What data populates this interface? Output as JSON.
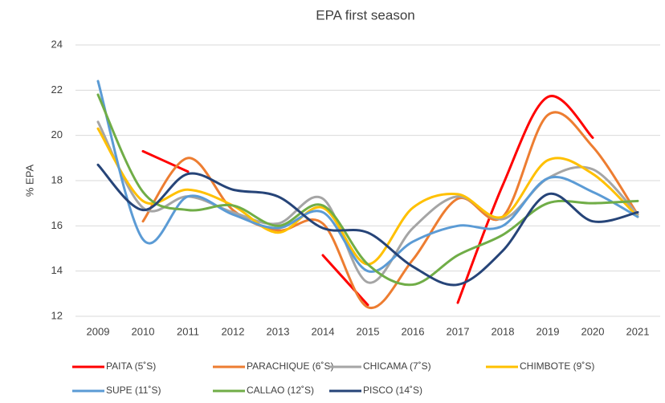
{
  "chart_data": {
    "type": "line",
    "title": "EPA first season",
    "y_label": "% EPA",
    "categories": [
      "2009",
      "2010",
      "2011",
      "2012",
      "2013",
      "2014",
      "2015",
      "2016",
      "2017",
      "2018",
      "2019",
      "2020",
      "2021"
    ],
    "ylim": [
      12,
      24
    ],
    "yticks": [
      12,
      14,
      16,
      18,
      20,
      22,
      24
    ],
    "grid": true,
    "smooth": true,
    "legend": "bottom",
    "series": [
      {
        "name": "PAITA (5˚S)",
        "color": "#ff0000",
        "values": [
          null,
          19.3,
          18.4,
          null,
          null,
          14.7,
          12.5,
          null,
          12.6,
          17.8,
          21.7,
          19.9,
          null
        ]
      },
      {
        "name": "PARACHIQUE (6˚S)",
        "color": "#ed7d31",
        "values": [
          null,
          16.2,
          19.0,
          16.7,
          15.8,
          16.1,
          12.4,
          14.5,
          17.2,
          16.4,
          20.9,
          19.5,
          16.5
        ]
      },
      {
        "name": "CHICAMA (7˚S)",
        "color": "#a5a5a5",
        "values": [
          20.6,
          16.8,
          17.3,
          16.6,
          16.1,
          17.2,
          13.5,
          15.9,
          17.3,
          16.3,
          18.1,
          18.5,
          16.5
        ]
      },
      {
        "name": "CHIMBOTE (9˚S)",
        "color": "#ffc000",
        "values": [
          20.3,
          17.1,
          17.6,
          16.9,
          15.7,
          16.8,
          14.3,
          16.8,
          17.4,
          16.4,
          18.9,
          18.3,
          16.4
        ]
      },
      {
        "name": "SUPE (11˚S)",
        "color": "#5b9bd5",
        "values": [
          22.4,
          15.4,
          17.3,
          16.5,
          15.9,
          16.6,
          14.0,
          15.3,
          16.0,
          16.0,
          18.1,
          17.5,
          16.4
        ]
      },
      {
        "name": "CALLAO (12˚S)",
        "color": "#70ad47",
        "values": [
          21.8,
          17.5,
          16.7,
          16.9,
          16.0,
          16.9,
          14.3,
          13.4,
          14.7,
          15.6,
          17.0,
          17.0,
          17.1
        ]
      },
      {
        "name": "PISCO (14˚S)",
        "color": "#264478",
        "values": [
          18.7,
          16.7,
          18.3,
          17.6,
          17.3,
          15.9,
          15.7,
          14.2,
          13.4,
          14.9,
          17.4,
          16.2,
          16.6
        ]
      }
    ]
  }
}
